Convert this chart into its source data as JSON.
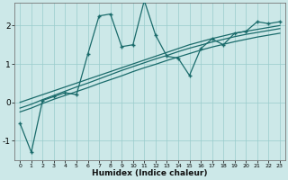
{
  "xlabel": "Humidex (Indice chaleur)",
  "bg_color": "#cce8e8",
  "grid_color": "#99cccc",
  "line_color": "#1a6b6b",
  "xlim": [
    -0.5,
    23.5
  ],
  "ylim": [
    -1.5,
    2.6
  ],
  "x_data": [
    0,
    1,
    2,
    3,
    4,
    5,
    6,
    7,
    8,
    9,
    10,
    11,
    12,
    13,
    14,
    15,
    16,
    17,
    18,
    19,
    20,
    21,
    22,
    23
  ],
  "y_main": [
    -0.55,
    -1.3,
    0.05,
    0.15,
    0.25,
    0.2,
    1.25,
    2.25,
    2.3,
    1.45,
    1.5,
    2.65,
    1.75,
    1.2,
    1.15,
    0.7,
    1.4,
    1.65,
    1.5,
    1.8,
    1.85,
    2.1,
    2.05,
    2.1
  ],
  "y_line1": [
    0.0,
    0.1,
    0.2,
    0.3,
    0.4,
    0.5,
    0.6,
    0.7,
    0.8,
    0.9,
    1.0,
    1.1,
    1.2,
    1.3,
    1.4,
    1.5,
    1.58,
    1.66,
    1.73,
    1.8,
    1.85,
    1.9,
    1.95,
    2.0
  ],
  "y_line2": [
    -0.15,
    -0.05,
    0.07,
    0.18,
    0.29,
    0.4,
    0.5,
    0.61,
    0.72,
    0.83,
    0.93,
    1.03,
    1.13,
    1.22,
    1.32,
    1.41,
    1.49,
    1.57,
    1.64,
    1.71,
    1.77,
    1.82,
    1.87,
    1.92
  ],
  "y_line3": [
    -0.25,
    -0.15,
    -0.03,
    0.08,
    0.18,
    0.28,
    0.38,
    0.49,
    0.59,
    0.69,
    0.8,
    0.9,
    0.99,
    1.09,
    1.18,
    1.27,
    1.36,
    1.44,
    1.51,
    1.58,
    1.64,
    1.7,
    1.75,
    1.8
  ],
  "yticks": [
    -1,
    0,
    1,
    2
  ],
  "xticks": [
    0,
    1,
    2,
    3,
    4,
    5,
    6,
    7,
    8,
    9,
    10,
    11,
    12,
    13,
    14,
    15,
    16,
    17,
    18,
    19,
    20,
    21,
    22,
    23
  ]
}
